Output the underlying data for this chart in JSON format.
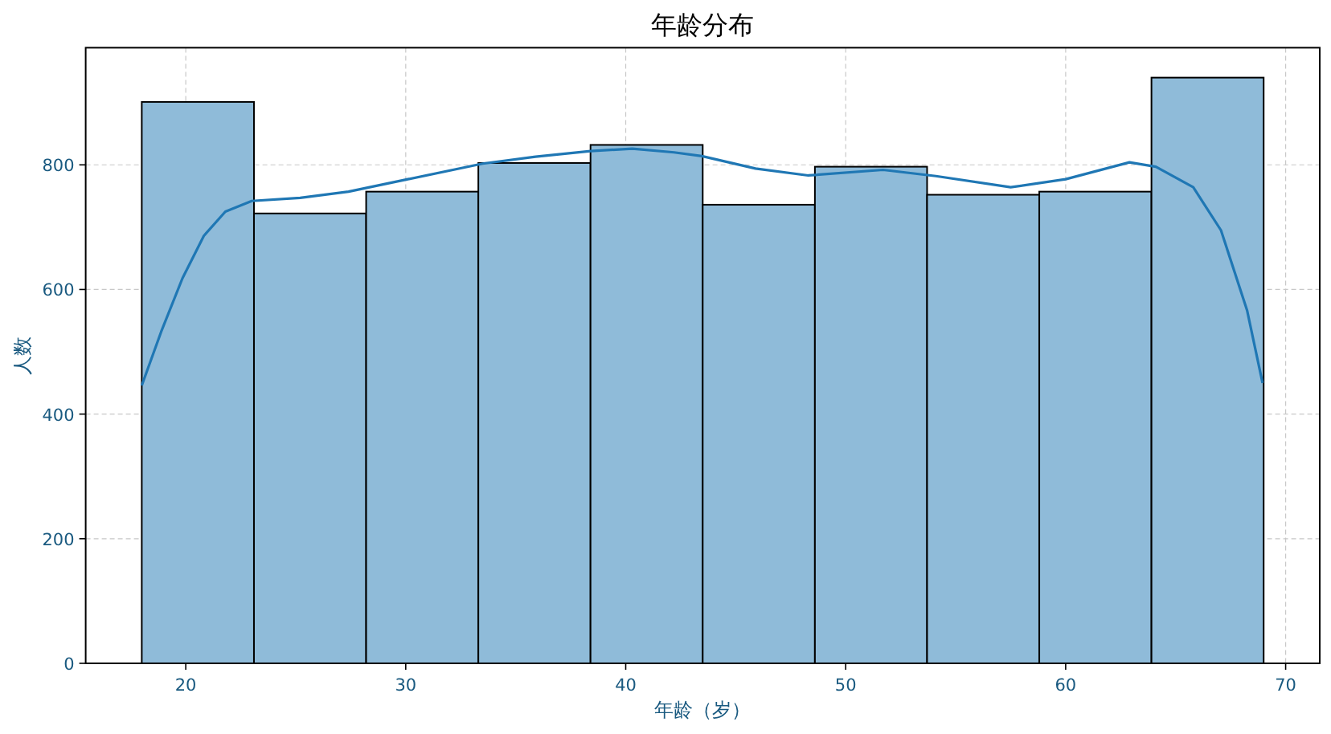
{
  "chart_data": {
    "type": "histogram",
    "title": "年龄分布",
    "xlabel": "年龄（岁）",
    "ylabel": "人数",
    "bins": [
      18,
      23.1,
      28.2,
      33.3,
      38.4,
      43.5,
      48.6,
      53.7,
      58.8,
      63.9,
      69
    ],
    "values": [
      901,
      722,
      757,
      803,
      832,
      736,
      797,
      752,
      757,
      940
    ],
    "color": "#8fbbd9",
    "series": [
      {
        "type": "line",
        "color": "#1f77b4",
        "x": [
          18,
          18.88,
          19.85,
          20.82,
          21.8,
          23,
          25.2,
          27.4,
          30.1,
          33.5,
          35.9,
          38.4,
          40.3,
          42.2,
          43.46,
          45.9,
          48.3,
          51.7,
          54.1,
          57.5,
          60,
          62.9,
          64.1,
          65.8,
          67.06,
          68.25,
          68.95
        ],
        "values": [
          446,
          532,
          618,
          686,
          725,
          742,
          747,
          757,
          777,
          802,
          813,
          822,
          826,
          820,
          814,
          794,
          783,
          792,
          782,
          764,
          777,
          804,
          797,
          764,
          695,
          566,
          450
        ]
      }
    ],
    "xlim": [
      15.45,
      71.55
    ],
    "ylim": [
      0,
      988
    ],
    "xticks": [
      20,
      30,
      40,
      50,
      60,
      70
    ],
    "yticks": [
      0,
      200,
      400,
      600,
      800
    ],
    "grid": true,
    "line_style": "solid",
    "marker": "none"
  }
}
